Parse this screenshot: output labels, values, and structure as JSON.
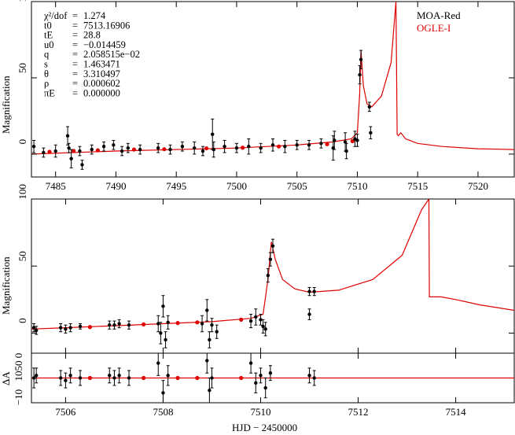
{
  "chart_data": [
    {
      "type": "scatter",
      "title": "",
      "xlabel": "",
      "ylabel": "Magnification",
      "xlim": [
        7483,
        7523
      ],
      "ylim": [
        -15,
        100
      ],
      "xticks": [
        7485,
        7490,
        7495,
        7500,
        7505,
        7510,
        7515,
        7520
      ],
      "yticks": [
        0,
        50,
        100
      ],
      "legend": [
        "MOA-Red",
        "OGLE-I"
      ],
      "legend_position": "top-right",
      "params": [
        {
          "name": "χ²/dof",
          "value": "1.274"
        },
        {
          "name": "t0",
          "value": "7513.16906"
        },
        {
          "name": "tE",
          "value": "28.8"
        },
        {
          "name": "u0",
          "value": "−0.014459"
        },
        {
          "name": "q",
          "value": "2.058515e−02"
        },
        {
          "name": "s",
          "value": "1.463471"
        },
        {
          "name": "θ",
          "value": "3.310497"
        },
        {
          "name": "ρ",
          "value": "0.000602"
        },
        {
          "name": "πE",
          "value": "0.000000"
        }
      ],
      "model": {
        "x": [
          7483,
          7490,
          7500,
          7505,
          7508,
          7509.5,
          7510.0,
          7510.2,
          7510.3,
          7510.5,
          7510.8,
          7511.2,
          7512,
          7512.8,
          7513.2,
          7513.3,
          7513.4,
          7513.6,
          7514,
          7515,
          7517,
          7520,
          7523
        ],
        "y": [
          0,
          2,
          4,
          6,
          8,
          10,
          14,
          40,
          68,
          45,
          33,
          31,
          38,
          60,
          100,
          13,
          12,
          14,
          10,
          7,
          5,
          3.5,
          3
        ]
      },
      "moa_points": [
        {
          "x": 7483.2,
          "y": 5,
          "e": 4
        },
        {
          "x": 7484.0,
          "y": 1,
          "e": 3
        },
        {
          "x": 7485.0,
          "y": 2,
          "e": 4
        },
        {
          "x": 7486.0,
          "y": 12,
          "e": 6
        },
        {
          "x": 7486.3,
          "y": -3,
          "e": 6
        },
        {
          "x": 7486.1,
          "y": 4,
          "e": 3
        },
        {
          "x": 7487.0,
          "y": 2,
          "e": 3
        },
        {
          "x": 7487.2,
          "y": -7,
          "e": 3
        },
        {
          "x": 7488.0,
          "y": 3,
          "e": 3
        },
        {
          "x": 7489.0,
          "y": 5,
          "e": 3
        },
        {
          "x": 7489.8,
          "y": 6,
          "e": 3
        },
        {
          "x": 7490.5,
          "y": 2,
          "e": 3
        },
        {
          "x": 7491.0,
          "y": 4,
          "e": 3
        },
        {
          "x": 7492.0,
          "y": 3,
          "e": 3
        },
        {
          "x": 7493.5,
          "y": 4,
          "e": 3
        },
        {
          "x": 7494.5,
          "y": 3,
          "e": 3
        },
        {
          "x": 7495.5,
          "y": 5,
          "e": 3
        },
        {
          "x": 7496.5,
          "y": 4,
          "e": 4
        },
        {
          "x": 7497.2,
          "y": 2,
          "e": 3
        },
        {
          "x": 7498.0,
          "y": 13,
          "e": 10
        },
        {
          "x": 7498.1,
          "y": 3,
          "e": 5
        },
        {
          "x": 7499.0,
          "y": 5,
          "e": 4
        },
        {
          "x": 7500.0,
          "y": 4,
          "e": 3
        },
        {
          "x": 7501.0,
          "y": 5,
          "e": 5
        },
        {
          "x": 7502.0,
          "y": 4,
          "e": 3
        },
        {
          "x": 7503.0,
          "y": 6,
          "e": 4
        },
        {
          "x": 7504.0,
          "y": 5,
          "e": 4
        },
        {
          "x": 7505.0,
          "y": 6,
          "e": 3
        },
        {
          "x": 7506.0,
          "y": 6,
          "e": 3
        },
        {
          "x": 7507.0,
          "y": 7,
          "e": 3
        },
        {
          "x": 7508.0,
          "y": 4,
          "e": 8
        },
        {
          "x": 7508.1,
          "y": 9,
          "e": 6
        },
        {
          "x": 7509.0,
          "y": 8,
          "e": 6
        },
        {
          "x": 7509.1,
          "y": 2,
          "e": 5
        },
        {
          "x": 7509.8,
          "y": 10,
          "e": 5
        },
        {
          "x": 7510.0,
          "y": 9,
          "e": 4
        },
        {
          "x": 7510.2,
          "y": 52,
          "e": 6
        },
        {
          "x": 7510.3,
          "y": 62,
          "e": 6
        },
        {
          "x": 7511.0,
          "y": 31,
          "e": 3
        },
        {
          "x": 7511.1,
          "y": 14,
          "e": 4
        }
      ],
      "ogle_points": [
        {
          "x": 7484.5,
          "y": 1.5
        },
        {
          "x": 7486.5,
          "y": 2
        },
        {
          "x": 7488.5,
          "y": 2.5
        },
        {
          "x": 7491.5,
          "y": 3
        },
        {
          "x": 7494.0,
          "y": 3.2
        },
        {
          "x": 7497.5,
          "y": 3.8
        },
        {
          "x": 7500.5,
          "y": 4.2
        },
        {
          "x": 7503.5,
          "y": 5
        },
        {
          "x": 7507.5,
          "y": 6.5
        },
        {
          "x": 7509.6,
          "y": 8.5
        }
      ]
    },
    {
      "type": "scatter",
      "title": "",
      "xlabel": "HJD − 2450000",
      "ylabel": "Magnification",
      "residual_ylabel": "ΔA",
      "xlim": [
        7505.3,
        7515.2
      ],
      "ylim": [
        -15,
        100
      ],
      "residual_ylim": [
        -10,
        10
      ],
      "xticks": [
        7506,
        7508,
        7510,
        7512,
        7514
      ],
      "yticks": [
        0,
        50,
        100
      ],
      "residual_yticks": [
        "−10",
        "10",
        "50",
        "0"
      ],
      "model": {
        "x": [
          7505.3,
          7506,
          7507,
          7508,
          7509,
          7509.8,
          7510.05,
          7510.15,
          7510.22,
          7510.3,
          7510.45,
          7510.7,
          7511.0,
          7511.6,
          7512.3,
          7512.9,
          7513.3,
          7513.45,
          7513.46,
          7513.7,
          7514,
          7514.5,
          7515.2
        ],
        "y": [
          3,
          4,
          5.5,
          7,
          8.5,
          11,
          14,
          40,
          68,
          55,
          40,
          33,
          30.5,
          32,
          40,
          58,
          92,
          100,
          27,
          27,
          25,
          21,
          17
        ]
      },
      "moa_points": [
        {
          "x": 7505.35,
          "y": 4,
          "e": 3
        },
        {
          "x": 7505.4,
          "y": 2,
          "e": 3
        },
        {
          "x": 7505.9,
          "y": 4,
          "e": 3
        },
        {
          "x": 7506.0,
          "y": 3,
          "e": 3
        },
        {
          "x": 7506.1,
          "y": 4,
          "e": 3
        },
        {
          "x": 7506.3,
          "y": 5,
          "e": 2
        },
        {
          "x": 7506.9,
          "y": 6,
          "e": 3
        },
        {
          "x": 7507.0,
          "y": 6,
          "e": 3
        },
        {
          "x": 7507.1,
          "y": 7,
          "e": 3
        },
        {
          "x": 7507.3,
          "y": 6,
          "e": 3
        },
        {
          "x": 7507.9,
          "y": 7,
          "e": 6
        },
        {
          "x": 7507.95,
          "y": 0,
          "e": 8
        },
        {
          "x": 7508.0,
          "y": 20,
          "e": 8
        },
        {
          "x": 7508.05,
          "y": -5,
          "e": 6
        },
        {
          "x": 7508.1,
          "y": 8,
          "e": 5
        },
        {
          "x": 7508.8,
          "y": 7,
          "e": 6
        },
        {
          "x": 7508.9,
          "y": 17,
          "e": 8
        },
        {
          "x": 7508.95,
          "y": -5,
          "e": 6
        },
        {
          "x": 7509.0,
          "y": 6,
          "e": 5
        },
        {
          "x": 7509.1,
          "y": 1,
          "e": 5
        },
        {
          "x": 7509.8,
          "y": 9,
          "e": 5
        },
        {
          "x": 7509.9,
          "y": 12,
          "e": 6
        },
        {
          "x": 7510.0,
          "y": 10,
          "e": 4
        },
        {
          "x": 7510.05,
          "y": 5,
          "e": 5
        },
        {
          "x": 7510.1,
          "y": 3,
          "e": 5
        },
        {
          "x": 7510.15,
          "y": 43,
          "e": 5
        },
        {
          "x": 7510.2,
          "y": 55,
          "e": 5
        },
        {
          "x": 7510.25,
          "y": 65,
          "e": 5
        },
        {
          "x": 7511.0,
          "y": 31,
          "e": 3
        },
        {
          "x": 7511.1,
          "y": 31,
          "e": 3
        },
        {
          "x": 7511.0,
          "y": 14,
          "e": 4
        }
      ],
      "ogle_points": [
        {
          "x": 7506.5,
          "y": 4.5
        },
        {
          "x": 7507.6,
          "y": 6.5
        },
        {
          "x": 7508.3,
          "y": 7.5
        },
        {
          "x": 7508.7,
          "y": 8
        },
        {
          "x": 7509.6,
          "y": 10
        }
      ],
      "residual_moa": [
        {
          "x": 7505.35,
          "y": 0,
          "e": 4
        },
        {
          "x": 7505.4,
          "y": 1,
          "e": 3
        },
        {
          "x": 7505.9,
          "y": 0,
          "e": 3
        },
        {
          "x": 7506.0,
          "y": -1,
          "e": 3
        },
        {
          "x": 7506.1,
          "y": 1,
          "e": 3
        },
        {
          "x": 7506.3,
          "y": 0,
          "e": 3
        },
        {
          "x": 7506.9,
          "y": 1,
          "e": 3
        },
        {
          "x": 7507.0,
          "y": 0,
          "e": 3
        },
        {
          "x": 7507.1,
          "y": 1,
          "e": 3
        },
        {
          "x": 7507.3,
          "y": 0,
          "e": 3
        },
        {
          "x": 7507.9,
          "y": 6,
          "e": 5
        },
        {
          "x": 7508.0,
          "y": -6,
          "e": 5
        },
        {
          "x": 7508.1,
          "y": 1,
          "e": 4
        },
        {
          "x": 7508.9,
          "y": 7,
          "e": 5
        },
        {
          "x": 7508.95,
          "y": -5,
          "e": 5
        },
        {
          "x": 7509.0,
          "y": 0,
          "e": 4
        },
        {
          "x": 7509.8,
          "y": 6,
          "e": 4
        },
        {
          "x": 7509.9,
          "y": -2,
          "e": 4
        },
        {
          "x": 7510.0,
          "y": 1,
          "e": 3
        },
        {
          "x": 7510.1,
          "y": -4,
          "e": 4
        },
        {
          "x": 7510.2,
          "y": 2,
          "e": 3
        },
        {
          "x": 7511.0,
          "y": 1,
          "e": 3
        },
        {
          "x": 7511.1,
          "y": 0,
          "e": 3
        }
      ],
      "residual_ogle": [
        {
          "x": 7506.5,
          "y": 0
        },
        {
          "x": 7507.6,
          "y": 0
        },
        {
          "x": 7508.3,
          "y": 0
        },
        {
          "x": 7508.7,
          "y": 0
        },
        {
          "x": 7509.6,
          "y": 0
        }
      ]
    }
  ],
  "colors": {
    "moa": "#000000",
    "ogle": "#e00000",
    "model": "#e00000",
    "axis": "#000000"
  }
}
